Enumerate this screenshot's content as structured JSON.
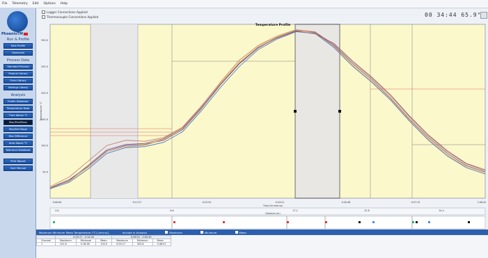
{
  "menu": [
    "File",
    "Telemetry",
    "Edit",
    "Options",
    "Help"
  ],
  "sidebar": {
    "logo_text": "PhoenixTM",
    "sections": [
      {
        "title": "Run & Profile",
        "items": [
          "New Profile",
          "Download"
        ]
      },
      {
        "title": "Process Data",
        "items": [
          "Standard Process",
          "Product Library",
          "Oven Library",
          "Settings Library"
        ]
      },
      {
        "title": "Analysis",
        "items": [
          "Profile Database",
          "Temperature Data",
          "Time Above °C",
          "Max/Min/Mean",
          "Max/Fall Slope",
          "Max Difference",
          "Area Above °C",
          "Tolerance Database"
        ]
      },
      {
        "title": "",
        "items": [
          "Print Report",
          "User Manual"
        ]
      }
    ],
    "active_item": "Max/Min/Mean"
  },
  "top_checks": [
    "Logger Connections Applied",
    "Thermocouple Connections Applied"
  ],
  "readout": "00 34:44   65.9°C",
  "chart_data": {
    "type": "line",
    "title": "Temperature Profile",
    "ylabel": "Temperature °C",
    "xlabel": "Time (hh:mm:ss)",
    "x2label": "Distance (m)",
    "ylim": [
      0,
      330
    ],
    "x_ticks": [
      "0:00:00",
      "0:11:27",
      "0:22:54",
      "0:34:21",
      "0:45:48",
      "0:57:15",
      "1:08:42"
    ],
    "x2_ticks": [
      "0.0",
      "8.6",
      "17.2",
      "25.8",
      "34.4"
    ],
    "y_ticks": [
      "300.0",
      "250.0",
      "200.0",
      "150.0",
      "100.0",
      "50.0"
    ],
    "x": [
      0,
      3,
      6,
      9,
      12,
      15,
      18,
      21,
      24,
      27,
      30,
      33,
      36,
      39,
      42,
      45,
      48,
      51,
      54,
      57,
      60,
      63,
      66,
      69
    ],
    "series": [
      {
        "color": "#6a4c8c",
        "values": [
          20,
          35,
          60,
          90,
          100,
          102,
          110,
          130,
          170,
          215,
          255,
          285,
          305,
          318,
          315,
          290,
          255,
          225,
          190,
          150,
          115,
          85,
          62,
          50
        ]
      },
      {
        "color": "#3a6fc4",
        "values": [
          18,
          30,
          55,
          85,
          96,
          98,
          106,
          126,
          166,
          210,
          250,
          282,
          302,
          316,
          313,
          286,
          250,
          220,
          186,
          146,
          110,
          80,
          58,
          46
        ]
      },
      {
        "color": "#c0786a",
        "values": [
          22,
          40,
          70,
          100,
          110,
          108,
          115,
          135,
          175,
          220,
          262,
          290,
          308,
          320,
          316,
          292,
          258,
          228,
          194,
          154,
          118,
          88,
          65,
          52
        ]
      },
      {
        "color": "#e0a24a",
        "values": [
          20,
          32,
          58,
          88,
          98,
          100,
          112,
          132,
          172,
          218,
          258,
          288,
          306,
          319,
          314,
          288,
          252,
          222,
          188,
          148,
          112,
          82,
          60,
          48
        ]
      },
      {
        "color": "#8a5a7a",
        "values": [
          19,
          33,
          62,
          92,
          102,
          104,
          113,
          133,
          173,
          216,
          256,
          286,
          304,
          317,
          312,
          294,
          260,
          230,
          196,
          156,
          120,
          90,
          66,
          54
        ]
      }
    ]
  },
  "lower_panel": {
    "title": "Maximum Minimum Mean Temperature (°C) [mm:ss]",
    "include_label": "Include in Analysis",
    "checks": [
      "Maximum",
      "Minimum",
      "Mean"
    ],
    "groups": [
      "0:00:17 - 0:14:26",
      "0:46:51 - 0:00:30"
    ],
    "columns": [
      "Channel",
      "Maximum",
      "Minimum",
      "Mean",
      "Maximum",
      "Minimum",
      "Mean"
    ],
    "row": [
      "1",
      "101.6",
      "0:16:38",
      "100.0",
      "0:00:17",
      "303.6",
      "0:46:51",
      "300.0"
    ]
  }
}
